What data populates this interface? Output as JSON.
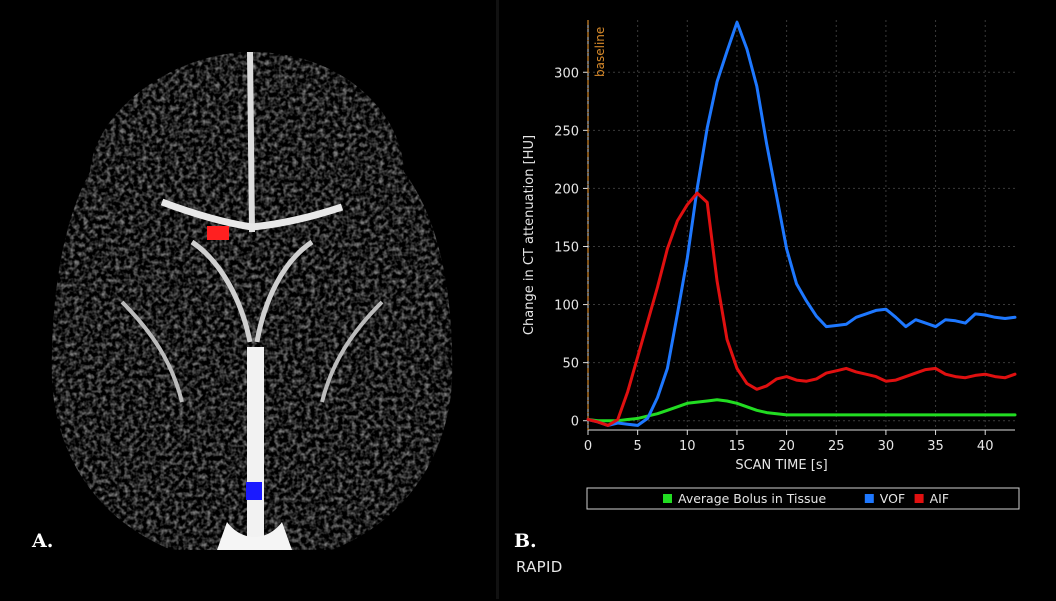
{
  "panel_a": {
    "label": "A."
  },
  "panel_b": {
    "label": "B.",
    "brand": "RAPID"
  },
  "colors": {
    "background": "#000000",
    "aif": "#e01010",
    "vof": "#1e78ff",
    "tissue": "#22dd22",
    "baseline": "#d98b2b",
    "grid": "#3a3a3a"
  },
  "chart_data": {
    "type": "line",
    "title": "",
    "xlabel": "SCAN TIME [s]",
    "ylabel": "Change in CT attenuation [HU]",
    "xlim": [
      0,
      43
    ],
    "ylim": [
      -8,
      345
    ],
    "xticks": [
      0,
      5,
      10,
      15,
      20,
      25,
      30,
      35,
      40
    ],
    "yticks": [
      0,
      50,
      100,
      150,
      200,
      250,
      300
    ],
    "grid": true,
    "legend_position": "bottom",
    "baseline": {
      "x": 0,
      "label": "baseline"
    },
    "series": [
      {
        "name": "Average Bolus in Tissue",
        "color": "#22dd22",
        "x": [
          0,
          1,
          2,
          3,
          4,
          5,
          6,
          7,
          8,
          9,
          10,
          11,
          12,
          13,
          14,
          15,
          16,
          17,
          18,
          19,
          20,
          21,
          22,
          23,
          24,
          25,
          26,
          27,
          28,
          29,
          30,
          31,
          32,
          33,
          34,
          35,
          36,
          37,
          38,
          39,
          40,
          41,
          42,
          43
        ],
        "y": [
          1,
          0,
          0,
          0,
          1,
          2,
          4,
          6,
          9,
          12,
          15,
          16,
          17,
          18,
          17,
          15,
          12,
          9,
          7,
          6,
          5,
          5,
          5,
          5,
          5,
          5,
          5,
          5,
          5,
          5,
          5,
          5,
          5,
          5,
          5,
          5,
          5,
          5,
          5,
          5,
          5,
          5,
          5,
          5
        ]
      },
      {
        "name": "VOF",
        "color": "#1e78ff",
        "x": [
          0,
          1,
          2,
          3,
          4,
          5,
          6,
          7,
          8,
          9,
          10,
          11,
          12,
          13,
          14,
          15,
          16,
          17,
          18,
          19,
          20,
          21,
          22,
          23,
          24,
          25,
          26,
          27,
          28,
          29,
          30,
          31,
          32,
          33,
          34,
          35,
          36,
          37,
          38,
          39,
          40,
          41,
          42,
          43
        ],
        "y": [
          1,
          -1,
          -4,
          -2,
          -3,
          -4,
          2,
          20,
          45,
          92,
          140,
          200,
          252,
          292,
          318,
          343,
          320,
          288,
          238,
          193,
          148,
          118,
          103,
          90,
          81,
          82,
          83,
          89,
          92,
          95,
          96,
          89,
          81,
          87,
          84,
          81,
          87,
          86,
          84,
          92,
          91,
          89,
          88,
          89
        ]
      },
      {
        "name": "AIF",
        "color": "#e01010",
        "x": [
          0,
          1,
          2,
          3,
          4,
          5,
          6,
          7,
          8,
          9,
          10,
          11,
          12,
          13,
          14,
          15,
          16,
          17,
          18,
          19,
          20,
          21,
          22,
          23,
          24,
          25,
          26,
          27,
          28,
          29,
          30,
          31,
          32,
          33,
          34,
          35,
          36,
          37,
          38,
          39,
          40,
          41,
          42,
          43
        ],
        "y": [
          1,
          -1,
          -4,
          1,
          25,
          55,
          85,
          115,
          148,
          172,
          186,
          196,
          188,
          120,
          70,
          45,
          32,
          27,
          30,
          36,
          38,
          35,
          34,
          36,
          41,
          43,
          45,
          42,
          40,
          38,
          34,
          35,
          38,
          41,
          44,
          45,
          40,
          38,
          37,
          39,
          40,
          38,
          37,
          40
        ]
      }
    ]
  }
}
